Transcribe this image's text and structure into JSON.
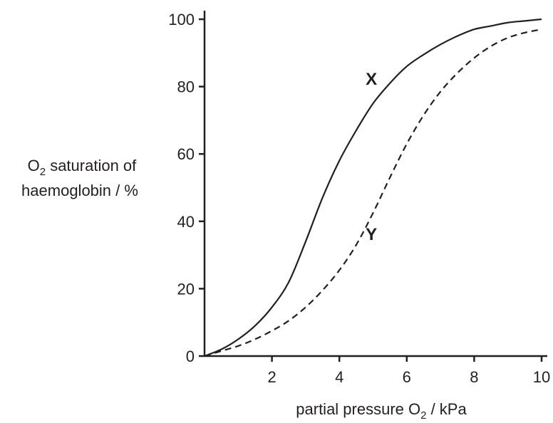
{
  "chart_data": {
    "type": "line",
    "title": "",
    "ylabel_line1_prefix": "O",
    "ylabel_line1_sub": "2",
    "ylabel_line1_suffix": " saturation of",
    "ylabel_line2": "haemoglobin / %",
    "xlabel_prefix": "partial pressure O",
    "xlabel_sub": "2",
    "xlabel_suffix": " / kPa",
    "xlim": [
      0,
      10
    ],
    "ylim": [
      0,
      100
    ],
    "x_ticks": [
      2,
      4,
      6,
      8,
      10
    ],
    "y_ticks": [
      0,
      20,
      40,
      60,
      80,
      100
    ],
    "grid": false,
    "series": [
      {
        "name": "X",
        "style": "solid",
        "x": [
          0,
          0.5,
          1,
          1.5,
          2,
          2.5,
          3,
          3.5,
          4,
          4.5,
          5,
          5.5,
          6,
          6.5,
          7,
          7.5,
          8,
          8.5,
          9,
          9.5,
          10
        ],
        "y": [
          0,
          2,
          5,
          9,
          14.5,
          22,
          34,
          47,
          58,
          67,
          75,
          81,
          86,
          89.5,
          92.5,
          95,
          97,
          98,
          99,
          99.5,
          100
        ]
      },
      {
        "name": "Y",
        "style": "dashed",
        "x": [
          0,
          0.5,
          1,
          1.5,
          2,
          2.5,
          3,
          3.5,
          4,
          4.5,
          5,
          5.5,
          6,
          6.5,
          7,
          7.5,
          8,
          8.5,
          9,
          9.5,
          10
        ],
        "y": [
          0,
          1.5,
          3,
          5,
          7.5,
          10.5,
          14.5,
          19.5,
          25.5,
          33,
          42.5,
          53,
          63,
          71.5,
          78.5,
          84,
          88.5,
          92,
          94.5,
          96,
          97
        ]
      }
    ]
  }
}
